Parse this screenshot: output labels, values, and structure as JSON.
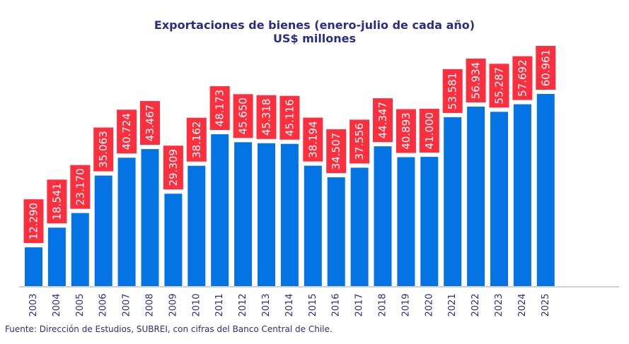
{
  "chart_data": {
    "type": "bar",
    "title": "Exportaciones de bienes (enero-julio de cada año)",
    "subtitle": "US$ millones",
    "xlabel": "",
    "ylabel": "",
    "ylim": [
      0,
      62
    ],
    "grid": false,
    "legend": "none",
    "categories": [
      "2003",
      "2004",
      "2005",
      "2006",
      "2007",
      "2008",
      "2009",
      "2010",
      "2011",
      "2012",
      "2013",
      "2014",
      "2015",
      "2016",
      "2017",
      "2018",
      "2019",
      "2020",
      "2021",
      "2022",
      "2023",
      "2024",
      "2025"
    ],
    "values": [
      12.29,
      18.541,
      23.17,
      35.063,
      40.724,
      43.467,
      29.309,
      38.162,
      48.173,
      45.65,
      45.318,
      45.116,
      38.194,
      34.507,
      37.556,
      44.347,
      40.893,
      41.0,
      53.581,
      56.934,
      55.287,
      57.692,
      60.961
    ],
    "data_labels": [
      "12.290",
      "18.541",
      "23.170",
      "35.063",
      "40.724",
      "43.467",
      "29.309",
      "38.162",
      "48.173",
      "45.650",
      "45.318",
      "45.116",
      "38.194",
      "34.507",
      "37.556",
      "44.347",
      "40.893",
      "41.000",
      "53.581",
      "56.934",
      "55.287",
      "57.692",
      "60.961"
    ],
    "source": "Fuente: Dirección de Estudios, SUBREI, con cifras del Banco Central de Chile."
  },
  "colors": {
    "bar": "#0474e5",
    "label_box": "#fc2f3f",
    "label_text": "#ffffff",
    "title": "#2b2d84",
    "axis": "#d0d0d0"
  }
}
